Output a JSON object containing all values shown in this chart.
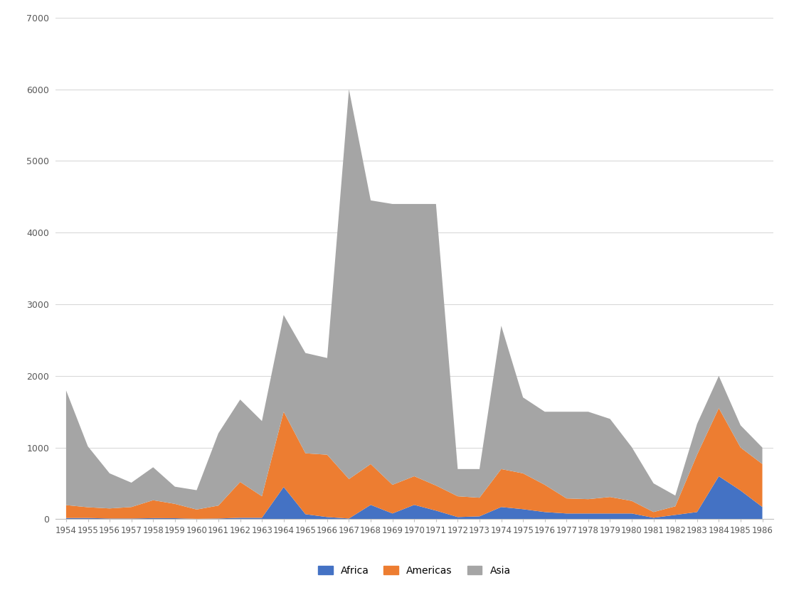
{
  "years": [
    1954,
    1955,
    1956,
    1957,
    1958,
    1959,
    1960,
    1961,
    1962,
    1963,
    1964,
    1965,
    1966,
    1967,
    1968,
    1969,
    1970,
    1971,
    1972,
    1973,
    1974,
    1975,
    1976,
    1977,
    1978,
    1979,
    1980,
    1981,
    1982,
    1983,
    1984,
    1985,
    1986
  ],
  "africa": [
    17,
    17,
    10,
    10,
    15,
    14,
    5,
    10,
    20,
    20,
    450,
    70,
    30,
    10,
    200,
    80,
    200,
    120,
    30,
    40,
    170,
    140,
    100,
    80,
    80,
    80,
    80,
    20,
    60,
    100,
    600,
    400,
    170
  ],
  "americas": [
    180,
    150,
    140,
    160,
    250,
    200,
    130,
    180,
    500,
    300,
    1050,
    850,
    870,
    550,
    570,
    400,
    400,
    350,
    290,
    260,
    530,
    500,
    380,
    210,
    200,
    230,
    175,
    80,
    120,
    800,
    950,
    600,
    600
  ],
  "asia": [
    1600,
    850,
    490,
    340,
    460,
    240,
    270,
    1010,
    1150,
    1050,
    1350,
    1400,
    1350,
    5440,
    3680,
    3920,
    3800,
    3930,
    380,
    400,
    2000,
    1060,
    1020,
    1210,
    1220,
    1090,
    750,
    400,
    150,
    430,
    450,
    310,
    230
  ],
  "colors": {
    "africa": "#4472C4",
    "americas": "#ED7D31",
    "asia": "#A5A5A5"
  },
  "ylim": [
    0,
    7000
  ],
  "yticks": [
    0,
    1000,
    2000,
    3000,
    4000,
    5000,
    6000,
    7000
  ],
  "background_color": "#FFFFFF",
  "grid_color": "#D9D9D9"
}
